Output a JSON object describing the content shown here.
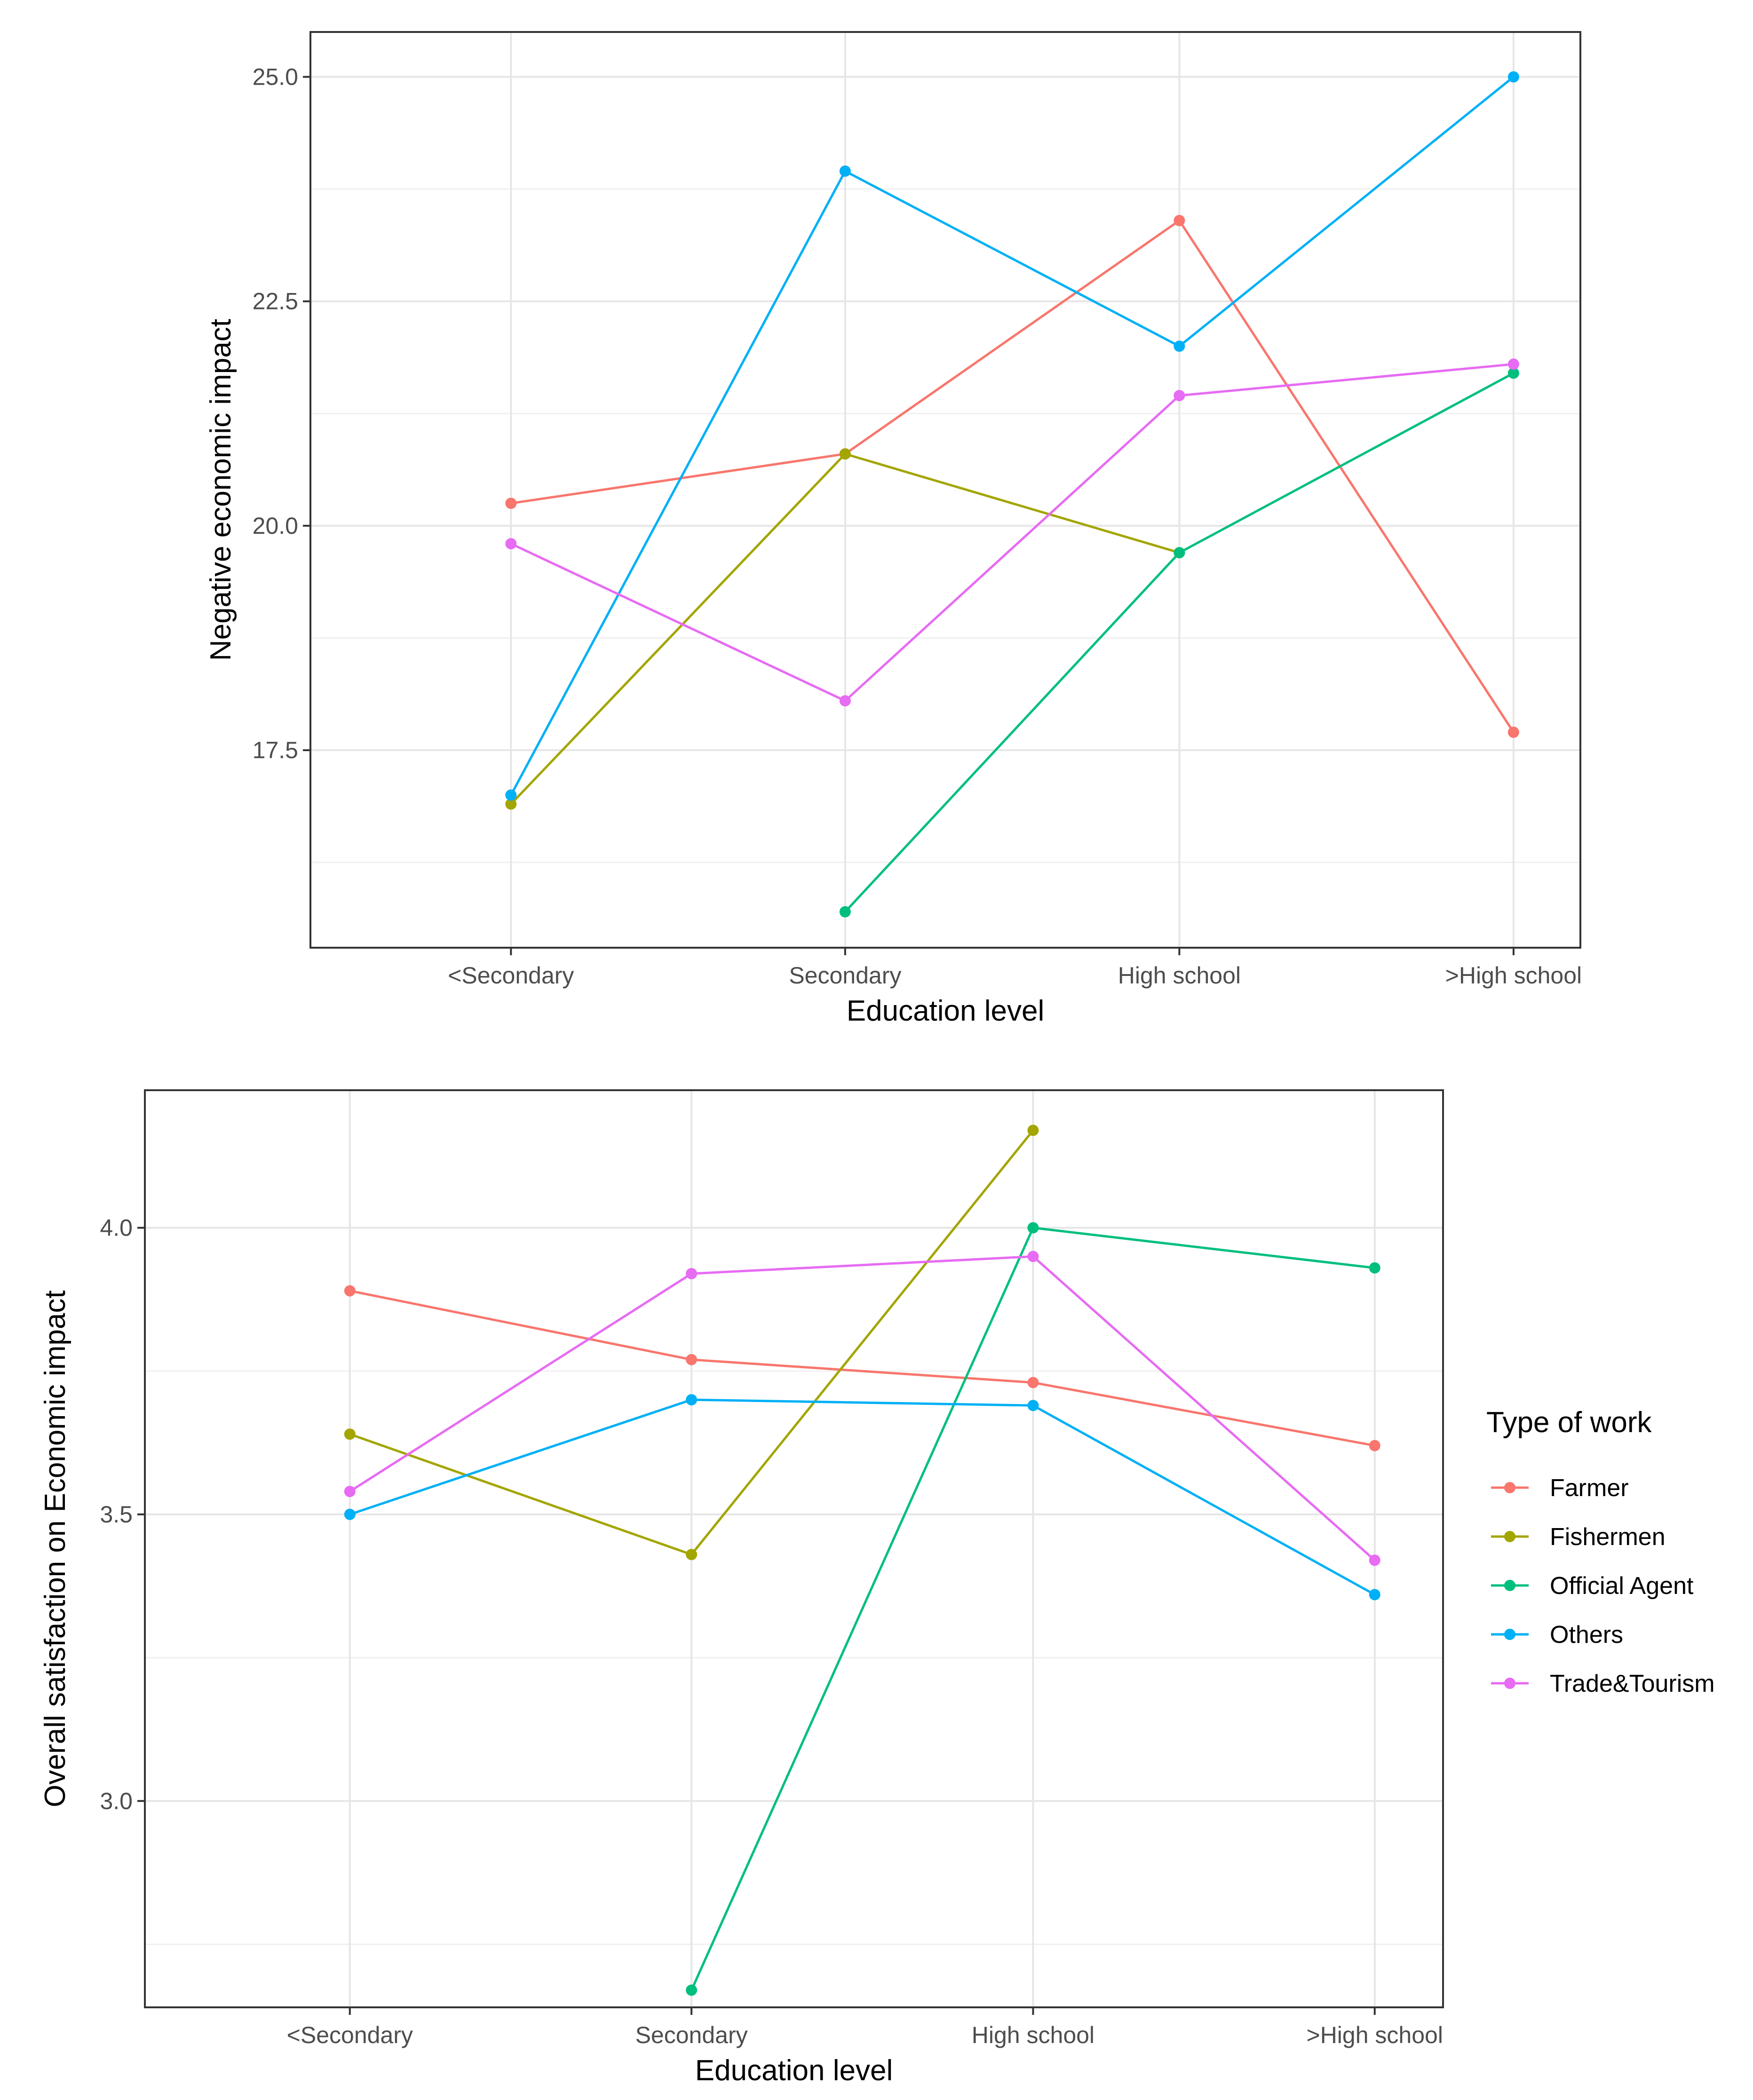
{
  "chart_data": [
    {
      "type": "line",
      "title": "",
      "xlabel": "Education level",
      "ylabel": "Negative economic impact",
      "categories": [
        "<Secondary",
        "Secondary",
        "High school",
        ">High school"
      ],
      "ylim": [
        15.3,
        25.5
      ],
      "yticks": [
        17.5,
        20.0,
        22.5,
        25.0
      ],
      "ytick_labels": [
        "17.5",
        "20.0",
        "22.5",
        "25.0"
      ],
      "grid": true,
      "series": [
        {
          "name": "Farmer",
          "color": "#F8766D",
          "values": [
            20.25,
            20.8,
            23.4,
            17.7
          ]
        },
        {
          "name": "Fishermen",
          "color": "#A3A500",
          "values": [
            16.9,
            20.8,
            19.7,
            null
          ]
        },
        {
          "name": "Official Agent",
          "color": "#00BF7D",
          "values": [
            null,
            15.7,
            19.7,
            21.7
          ]
        },
        {
          "name": "Others",
          "color": "#00B0F6",
          "values": [
            17.0,
            23.95,
            22.0,
            25.0
          ]
        },
        {
          "name": "Trade&Tourism",
          "color": "#E76BF3",
          "values": [
            19.8,
            18.05,
            21.45,
            21.8
          ]
        }
      ]
    },
    {
      "type": "line",
      "title": "",
      "xlabel": "Education level",
      "ylabel": "Overall satisfaction on Economic impact",
      "categories": [
        "<Secondary",
        "Secondary",
        "High school",
        ">High school"
      ],
      "ylim": [
        2.64,
        4.24
      ],
      "yticks": [
        3.0,
        3.5,
        4.0
      ],
      "ytick_labels": [
        "3.0",
        "3.5",
        "4.0"
      ],
      "grid": true,
      "series": [
        {
          "name": "Farmer",
          "color": "#F8766D",
          "values": [
            3.89,
            3.77,
            3.73,
            3.62
          ]
        },
        {
          "name": "Fishermen",
          "color": "#A3A500",
          "values": [
            3.64,
            3.43,
            4.17,
            null
          ]
        },
        {
          "name": "Official Agent",
          "color": "#00BF7D",
          "values": [
            null,
            2.67,
            4.0,
            3.93
          ]
        },
        {
          "name": "Others",
          "color": "#00B0F6",
          "values": [
            3.5,
            3.7,
            3.69,
            3.36
          ]
        },
        {
          "name": "Trade&Tourism",
          "color": "#E76BF3",
          "values": [
            3.54,
            3.92,
            3.95,
            3.42
          ]
        }
      ]
    }
  ],
  "legend": {
    "title": "Type of work",
    "placement": "right of lower chart",
    "items": [
      "Farmer",
      "Fishermen",
      "Official Agent",
      "Others",
      "Trade&Tourism"
    ]
  }
}
